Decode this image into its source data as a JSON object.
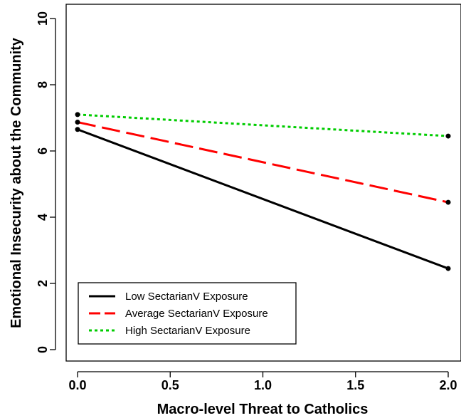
{
  "chart_data": {
    "type": "line",
    "xlabel": "Macro-level Threat to Catholics",
    "ylabel": "Emotional Insecurity about the Community",
    "xlim": [
      0,
      2
    ],
    "ylim": [
      0,
      10
    ],
    "x_ticks": [
      "0.0",
      "0.5",
      "1.0",
      "1.5",
      "2.0"
    ],
    "y_ticks": [
      "0",
      "2",
      "4",
      "6",
      "8",
      "10"
    ],
    "x": [
      0,
      2
    ],
    "series": [
      {
        "name": "Low SectarianV Exposure",
        "values": [
          6.65,
          2.45
        ],
        "color": "#000000",
        "dash": "solid"
      },
      {
        "name": "Average SectarianV Exposure",
        "values": [
          6.87,
          4.45
        ],
        "color": "#ff0000",
        "dash": "long-dash"
      },
      {
        "name": "High SectarianV Exposure",
        "values": [
          7.1,
          6.45
        ],
        "color": "#00cc00",
        "dash": "dotted"
      }
    ],
    "legend_position": "bottom-left",
    "grid": false
  }
}
